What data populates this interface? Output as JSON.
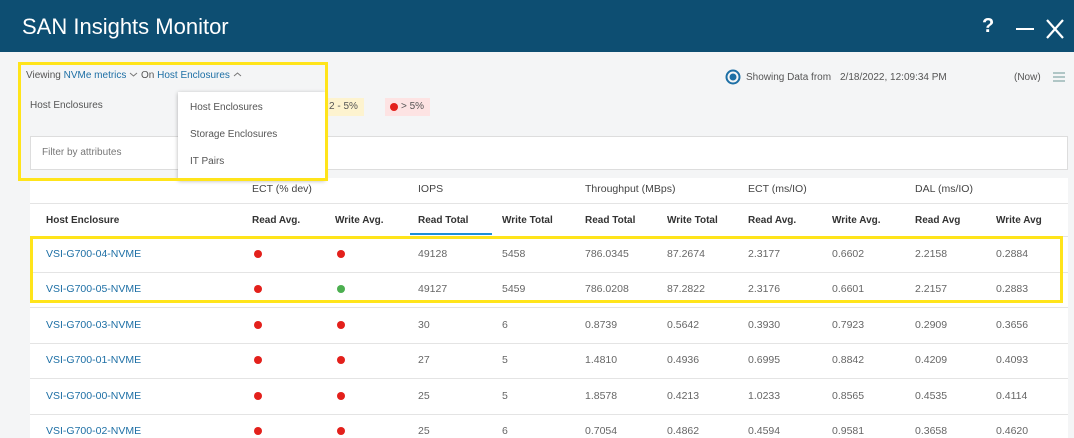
{
  "header": {
    "title": "SAN Insights Monitor",
    "help": "?"
  },
  "toolbar": {
    "viewing": "Viewing",
    "metric": "NVMe metrics",
    "on": "On",
    "scope": "Host Enclosures",
    "showing": "Showing Data from",
    "timestamp": "2/18/2022, 12:09:34 PM",
    "now": "(Now)"
  },
  "filter": {
    "label": "Host Enclosures",
    "legend": [
      {
        "label": "2 - 5%",
        "color": "#f2b705",
        "bg": "#fdf3cf"
      },
      {
        "label": "> 5%",
        "color": "#e3201b",
        "bg": "#fde3e3"
      }
    ],
    "placeholder": "Filter by attributes"
  },
  "dropdown": {
    "items": [
      "Host Enclosures",
      "Storage Enclosures",
      "IT Pairs"
    ]
  },
  "table": {
    "groups": [
      "ECT (% dev)",
      "IOPS",
      "Throughput (MBps)",
      "ECT (ms/IO)",
      "DAL (ms/IO)"
    ],
    "columns": [
      "Host Enclosure",
      "Read Avg.",
      "Write Avg.",
      "Read Total",
      "Write Total",
      "Read Total",
      "Write Total",
      "Read Avg.",
      "Write Avg.",
      "Read Avg",
      "Write Avg"
    ],
    "rows": [
      {
        "name": "VSI-G700-04-NVME",
        "status": [
          "#e3201b",
          "#e3201b"
        ],
        "values": [
          "49128",
          "5458",
          "786.0345",
          "87.2674",
          "2.3177",
          "0.6602",
          "2.2158",
          "0.2884"
        ]
      },
      {
        "name": "VSI-G700-05-NVME",
        "status": [
          "#e3201b",
          "#4caf50"
        ],
        "values": [
          "49127",
          "5459",
          "786.0208",
          "87.2822",
          "2.3176",
          "0.6601",
          "2.2157",
          "0.2883"
        ]
      },
      {
        "name": "VSI-G700-03-NVME",
        "status": [
          "#e3201b",
          "#e3201b"
        ],
        "values": [
          "30",
          "6",
          "0.8739",
          "0.5642",
          "0.3930",
          "0.7923",
          "0.2909",
          "0.3656"
        ]
      },
      {
        "name": "VSI-G700-01-NVME",
        "status": [
          "#e3201b",
          "#e3201b"
        ],
        "values": [
          "27",
          "5",
          "1.4810",
          "0.4936",
          "0.6995",
          "0.8842",
          "0.4209",
          "0.4093"
        ]
      },
      {
        "name": "VSI-G700-00-NVME",
        "status": [
          "#e3201b",
          "#e3201b"
        ],
        "values": [
          "25",
          "5",
          "1.8578",
          "0.4213",
          "1.0233",
          "0.8565",
          "0.4535",
          "0.4114"
        ]
      },
      {
        "name": "VSI-G700-02-NVME",
        "status": [
          "#e3201b",
          "#e3201b"
        ],
        "values": [
          "25",
          "6",
          "0.7054",
          "0.4862",
          "0.4594",
          "0.9581",
          "0.3658",
          "0.4620"
        ]
      }
    ]
  }
}
